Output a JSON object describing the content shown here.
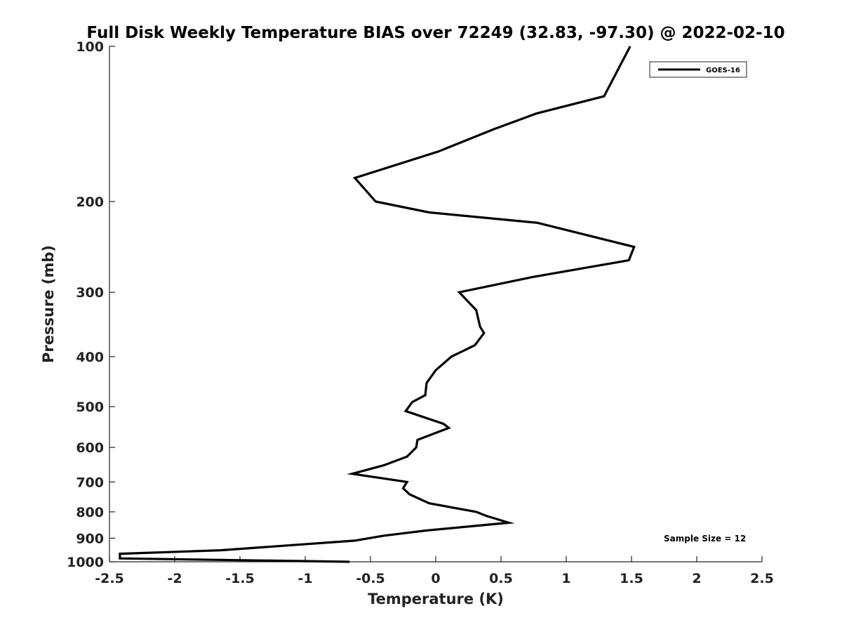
{
  "chart_data": {
    "type": "line",
    "title": "Full Disk Weekly Temperature BIAS over 72249 (32.83, -97.30) @ 2022-02-10",
    "xlabel": "Temperature (K)",
    "ylabel": "Pressure (mb)",
    "xlim": [
      -2.5,
      2.5
    ],
    "ylim": [
      100,
      1000
    ],
    "y_scale": "log",
    "y_reversed": true,
    "x_ticks": [
      "-2.5",
      "-2",
      "-1.5",
      "-1",
      "-0.5",
      "0",
      "0.5",
      "1",
      "1.5",
      "2",
      "2.5"
    ],
    "y_ticks": [
      "100",
      "200",
      "300",
      "400",
      "500",
      "600",
      "700",
      "800",
      "900",
      "1000"
    ],
    "grid": false,
    "legend": {
      "placement": "top-right",
      "entries": [
        "GOES-16"
      ]
    },
    "annotation": "Sample Size = 12",
    "series": [
      {
        "name": "GOES-16",
        "color": "#000000",
        "points": [
          {
            "p": 100,
            "t": 1.49
          },
          {
            "p": 125,
            "t": 1.29
          },
          {
            "p": 135,
            "t": 0.77
          },
          {
            "p": 145,
            "t": 0.44
          },
          {
            "p": 160,
            "t": 0.02
          },
          {
            "p": 180,
            "t": -0.62
          },
          {
            "p": 200,
            "t": -0.46
          },
          {
            "p": 210,
            "t": -0.05
          },
          {
            "p": 220,
            "t": 0.78
          },
          {
            "p": 245,
            "t": 1.52
          },
          {
            "p": 260,
            "t": 1.48
          },
          {
            "p": 280,
            "t": 0.75
          },
          {
            "p": 300,
            "t": 0.18
          },
          {
            "p": 325,
            "t": 0.31
          },
          {
            "p": 350,
            "t": 0.34
          },
          {
            "p": 360,
            "t": 0.37
          },
          {
            "p": 380,
            "t": 0.3
          },
          {
            "p": 400,
            "t": 0.12
          },
          {
            "p": 425,
            "t": 0.0
          },
          {
            "p": 450,
            "t": -0.07
          },
          {
            "p": 475,
            "t": -0.08
          },
          {
            "p": 490,
            "t": -0.18
          },
          {
            "p": 510,
            "t": -0.23
          },
          {
            "p": 540,
            "t": 0.06
          },
          {
            "p": 550,
            "t": 0.1
          },
          {
            "p": 580,
            "t": -0.14
          },
          {
            "p": 600,
            "t": -0.15
          },
          {
            "p": 625,
            "t": -0.22
          },
          {
            "p": 650,
            "t": -0.4
          },
          {
            "p": 675,
            "t": -0.64
          },
          {
            "p": 700,
            "t": -0.22
          },
          {
            "p": 720,
            "t": -0.25
          },
          {
            "p": 740,
            "t": -0.2
          },
          {
            "p": 770,
            "t": -0.05
          },
          {
            "p": 800,
            "t": 0.31
          },
          {
            "p": 815,
            "t": 0.39
          },
          {
            "p": 840,
            "t": 0.56
          },
          {
            "p": 870,
            "t": -0.08
          },
          {
            "p": 890,
            "t": -0.4
          },
          {
            "p": 910,
            "t": -0.62
          },
          {
            "p": 950,
            "t": -1.65
          },
          {
            "p": 965,
            "t": -2.42
          },
          {
            "p": 985,
            "t": -2.42
          },
          {
            "p": 1000,
            "t": -0.66
          }
        ]
      }
    ]
  }
}
